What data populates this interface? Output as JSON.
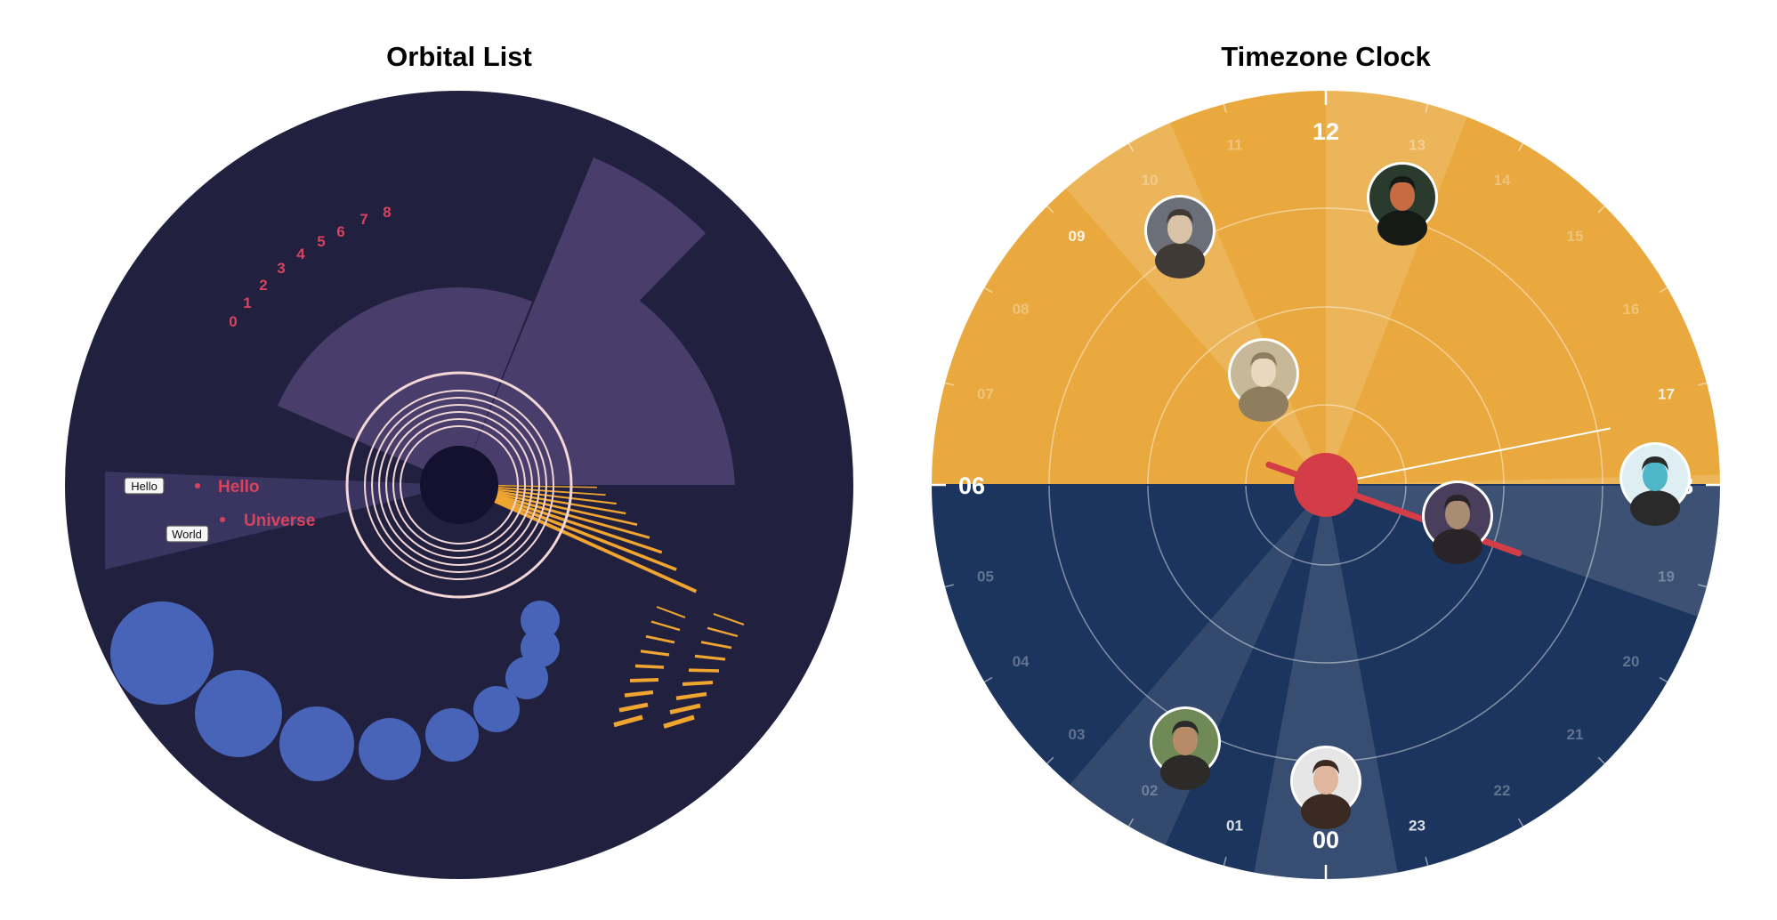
{
  "left_panel": {
    "title": "Orbital List",
    "index_labels": [
      "0",
      "1",
      "2",
      "3",
      "4",
      "5",
      "6",
      "7",
      "8"
    ],
    "tags": [
      "Hello",
      "World"
    ],
    "list_items": [
      "Hello",
      "Universe"
    ],
    "colors": {
      "background": "#22203f",
      "wedge": "#483d6b",
      "wedge_light": "#3a3560",
      "rings": "#f3d7d7",
      "center": "#13112e",
      "accent_orange": "#f0a530",
      "bubbles": "#4764b8",
      "labels": "#d7435f"
    }
  },
  "right_panel": {
    "title": "Timezone Clock",
    "hours": [
      "00",
      "01",
      "02",
      "03",
      "04",
      "05",
      "06",
      "07",
      "08",
      "09",
      "10",
      "11",
      "12",
      "13",
      "14",
      "15",
      "16",
      "17",
      "18",
      "19",
      "20",
      "21",
      "22",
      "23"
    ],
    "avatars": [
      {
        "name": "avatar-man-beard",
        "hour": 9.6
      },
      {
        "name": "avatar-dj",
        "hour": 13.7
      },
      {
        "name": "avatar-woman-field",
        "hour": 10.2
      },
      {
        "name": "avatar-woman-blue-hair",
        "hour": 17.9
      },
      {
        "name": "avatar-man-purple",
        "hour": 19.9
      },
      {
        "name": "avatar-man-sunglasses",
        "hour": 2.3
      },
      {
        "name": "avatar-woman-smile",
        "hour": 0.0
      }
    ],
    "colors": {
      "day": "#e9a93f",
      "night": "#1c355e",
      "hand": "#d23d47",
      "rings": "#ffffff"
    }
  }
}
